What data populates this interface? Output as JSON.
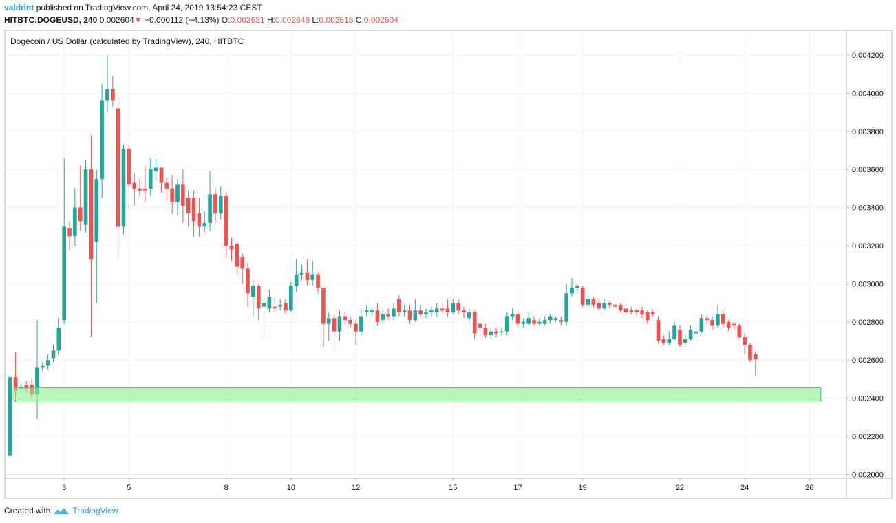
{
  "header": {
    "user": "valdrint",
    "published": "published on TradingView.com, April 24, 2019 13:54:23 CEST",
    "symbol": "HITBTC:DOGEUSD, 240",
    "price": "0.002604",
    "arrow": "▼",
    "change": "−0.000112 (−4.13%)",
    "o_label": "O:",
    "o": "0.002631",
    "h_label": "H:",
    "h": "0.002648",
    "l_label": "L:",
    "l": "0.002515",
    "c_label": "C:",
    "c": "0.002604"
  },
  "footer": {
    "created": "Created with",
    "brand": "TradingView"
  },
  "chart_data": {
    "type": "candlestick",
    "title": "Dogecoin / US Dollar (calculated by TradingView), 240, HITBTC",
    "up_color": "#26a69a",
    "down_color": "#ef5350",
    "grid": true,
    "xlim": [
      1.17,
      27.14
    ],
    "xticks": [
      3,
      5,
      8,
      10,
      12,
      15,
      17,
      19,
      22,
      24,
      26
    ],
    "ylim": [
      0.00198,
      0.00433
    ],
    "yticks": [
      {
        "value": 0.002,
        "label": "0.002000"
      },
      {
        "value": 0.0022,
        "label": "0.002200"
      },
      {
        "value": 0.0024,
        "label": "0.002400"
      },
      {
        "value": 0.0026,
        "label": "0.002600"
      },
      {
        "value": 0.0028,
        "label": "0.002800"
      },
      {
        "value": 0.003,
        "label": "0.003000"
      },
      {
        "value": 0.0032,
        "label": "0.003200"
      },
      {
        "value": 0.0034,
        "label": "0.003400"
      },
      {
        "value": 0.0036,
        "label": "0.003600"
      },
      {
        "value": 0.0038,
        "label": "0.003800"
      },
      {
        "value": 0.004,
        "label": "0.004000"
      },
      {
        "value": 0.0042,
        "label": "0.004200"
      }
    ],
    "highlight_band": {
      "x": [
        1.45,
        26.35
      ],
      "y": [
        0.002386,
        0.002455
      ],
      "color": "#90ee90"
    },
    "x": [
      1.333,
      1.5,
      1.667,
      1.833,
      2,
      2.167,
      2.333,
      2.5,
      2.667,
      2.833,
      3,
      3.167,
      3.333,
      3.5,
      3.667,
      3.833,
      4,
      4.167,
      4.333,
      4.5,
      4.667,
      4.833,
      5,
      5.167,
      5.333,
      5.5,
      5.667,
      5.833,
      6,
      6.167,
      6.333,
      6.5,
      6.667,
      6.833,
      7,
      7.167,
      7.333,
      7.5,
      7.667,
      7.833,
      8,
      8.167,
      8.333,
      8.5,
      8.667,
      8.833,
      9,
      9.167,
      9.333,
      9.5,
      9.667,
      9.833,
      10,
      10.167,
      10.333,
      10.5,
      10.667,
      10.833,
      11,
      11.167,
      11.333,
      11.5,
      11.667,
      11.833,
      12,
      12.167,
      12.333,
      12.5,
      12.667,
      12.833,
      13,
      13.167,
      13.333,
      13.5,
      13.667,
      13.833,
      14,
      14.167,
      14.333,
      14.5,
      14.667,
      14.833,
      15,
      15.167,
      15.333,
      15.5,
      15.667,
      15.833,
      16,
      16.167,
      16.333,
      16.5,
      16.667,
      16.833,
      17,
      17.167,
      17.333,
      17.5,
      17.667,
      17.833,
      18,
      18.167,
      18.333,
      18.5,
      18.667,
      18.833,
      19,
      19.167,
      19.333,
      19.5,
      19.667,
      19.833,
      20,
      20.167,
      20.333,
      20.5,
      20.667,
      20.833,
      21,
      21.167,
      21.333,
      21.5,
      21.667,
      21.833,
      22,
      22.167,
      22.333,
      22.5,
      22.667,
      22.833,
      23,
      23.167,
      23.333,
      23.5,
      23.667,
      23.833,
      24,
      24.167,
      24.333
    ],
    "open": [
      0.0021,
      0.00251,
      0.00245,
      0.00247,
      0.00247,
      0.00242,
      0.00256,
      0.00257,
      0.00261,
      0.00265,
      0.00281,
      0.00329,
      0.00325,
      0.0034,
      0.00331,
      0.0036,
      0.00322,
      0.00355,
      0.00396,
      0.00402,
      0.00392,
      0.0033,
      0.00371,
      0.00353,
      0.0035,
      0.0035,
      0.0035,
      0.00359,
      0.00361,
      0.00353,
      0.0035,
      0.00343,
      0.00352,
      0.00345,
      0.00345,
      0.00337,
      0.0033,
      0.00332,
      0.00347,
      0.00337,
      0.00346,
      0.0032,
      0.00321,
      0.00314,
      0.00308,
      0.00293,
      0.00299,
      0.00288,
      0.00287,
      0.00288,
      0.00288,
      0.0029,
      0.00286,
      0.00299,
      0.00305,
      0.00306,
      0.00302,
      0.00305,
      0.00298,
      0.00279,
      0.00282,
      0.00275,
      0.00283,
      0.00281,
      0.00279,
      0.00275,
      0.00285,
      0.00285,
      0.00286,
      0.00281,
      0.00284,
      0.00283,
      0.00292,
      0.00285,
      0.00286,
      0.00281,
      0.00286,
      0.00284,
      0.00285,
      0.00285,
      0.00287,
      0.00287,
      0.00285,
      0.0029,
      0.00286,
      0.00282,
      0.00285,
      0.00279,
      0.00277,
      0.00273,
      0.00275,
      0.00275,
      0.00275,
      0.00283,
      0.00284,
      0.00279,
      0.00279,
      0.00281,
      0.00279,
      0.00279,
      0.00281,
      0.00281,
      0.00281,
      0.0028,
      0.00295,
      0.00298,
      0.00298,
      0.00289,
      0.00292,
      0.0029,
      0.00287,
      0.0029,
      0.00289,
      0.00289,
      0.00287,
      0.00286,
      0.00286,
      0.00286,
      0.00285,
      0.00285,
      0.00281,
      0.00271,
      0.00269,
      0.00271,
      0.00276,
      0.00269,
      0.00271,
      0.00274,
      0.00275,
      0.00282,
      0.00281,
      0.00278,
      0.00284,
      0.0028,
      0.00279,
      0.00278,
      0.00272,
      0.00268,
      0.002631
    ],
    "high": [
      0.00251,
      0.00264,
      0.00248,
      0.00249,
      0.0025,
      0.00281,
      0.00259,
      0.00263,
      0.00268,
      0.00282,
      0.00366,
      0.00333,
      0.0035,
      0.00362,
      0.00365,
      0.00378,
      0.0036,
      0.00405,
      0.0042,
      0.00409,
      0.00398,
      0.00373,
      0.00373,
      0.00358,
      0.00355,
      0.00362,
      0.00366,
      0.00366,
      0.00361,
      0.00356,
      0.00357,
      0.00355,
      0.0036,
      0.00349,
      0.00349,
      0.00345,
      0.00338,
      0.00359,
      0.0035,
      0.00351,
      0.00348,
      0.00324,
      0.00322,
      0.00316,
      0.00311,
      0.00302,
      0.003,
      0.00296,
      0.00297,
      0.00293,
      0.00292,
      0.00292,
      0.00301,
      0.00313,
      0.0031,
      0.00313,
      0.00312,
      0.00306,
      0.00298,
      0.00285,
      0.00284,
      0.00286,
      0.00285,
      0.00283,
      0.00281,
      0.00286,
      0.00289,
      0.00288,
      0.0029,
      0.00286,
      0.00287,
      0.0029,
      0.00294,
      0.00289,
      0.00289,
      0.00292,
      0.00289,
      0.00287,
      0.00288,
      0.0029,
      0.0029,
      0.00292,
      0.00292,
      0.00292,
      0.00288,
      0.00287,
      0.00286,
      0.00281,
      0.00279,
      0.00277,
      0.00277,
      0.00277,
      0.00285,
      0.00287,
      0.00286,
      0.00282,
      0.00285,
      0.00283,
      0.00282,
      0.00283,
      0.00284,
      0.00283,
      0.00283,
      0.003,
      0.00303,
      0.003,
      0.00299,
      0.00294,
      0.00293,
      0.00292,
      0.00292,
      0.00291,
      0.0029,
      0.0029,
      0.00289,
      0.00288,
      0.00287,
      0.00288,
      0.00286,
      0.00286,
      0.00283,
      0.00273,
      0.00275,
      0.0028,
      0.00278,
      0.00273,
      0.00278,
      0.00277,
      0.00284,
      0.00284,
      0.00283,
      0.00289,
      0.00286,
      0.00281,
      0.0028,
      0.00279,
      0.00274,
      0.00269,
      0.002648
    ],
    "low": [
      0.00209,
      0.00238,
      0.00242,
      0.00243,
      0.0024,
      0.00229,
      0.00254,
      0.00255,
      0.00259,
      0.00263,
      0.00279,
      0.00318,
      0.0032,
      0.00328,
      0.00327,
      0.00272,
      0.0029,
      0.00345,
      0.0039,
      0.00393,
      0.00315,
      0.00326,
      0.0034,
      0.00341,
      0.00346,
      0.00343,
      0.00346,
      0.00354,
      0.00348,
      0.00344,
      0.00337,
      0.00336,
      0.00332,
      0.0033,
      0.00325,
      0.00325,
      0.00327,
      0.00328,
      0.00332,
      0.00334,
      0.00314,
      0.00312,
      0.00305,
      0.003,
      0.00288,
      0.00283,
      0.00281,
      0.00272,
      0.00285,
      0.00285,
      0.00286,
      0.00284,
      0.00285,
      0.00296,
      0.00302,
      0.00299,
      0.00299,
      0.00295,
      0.00267,
      0.0027,
      0.00265,
      0.0027,
      0.00278,
      0.00277,
      0.00268,
      0.00273,
      0.00283,
      0.00283,
      0.00278,
      0.00279,
      0.00281,
      0.00281,
      0.00283,
      0.00283,
      0.00279,
      0.0028,
      0.00283,
      0.00282,
      0.00283,
      0.00283,
      0.00285,
      0.00283,
      0.00284,
      0.00284,
      0.00282,
      0.0028,
      0.00271,
      0.00275,
      0.00272,
      0.00271,
      0.00272,
      0.00273,
      0.00273,
      0.00281,
      0.00277,
      0.00277,
      0.00278,
      0.00278,
      0.00278,
      0.00278,
      0.00279,
      0.0028,
      0.00278,
      0.00278,
      0.00293,
      0.00295,
      0.00288,
      0.00287,
      0.00287,
      0.00286,
      0.00286,
      0.00287,
      0.00287,
      0.00285,
      0.00284,
      0.00284,
      0.00283,
      0.00282,
      0.00279,
      0.00283,
      0.00269,
      0.00268,
      0.00268,
      0.0027,
      0.00267,
      0.00268,
      0.0027,
      0.00272,
      0.00274,
      0.00279,
      0.00276,
      0.00277,
      0.00277,
      0.00275,
      0.00276,
      0.00271,
      0.00263,
      0.00259,
      0.002515
    ],
    "close": [
      0.00251,
      0.00244,
      0.00246,
      0.00245,
      0.00242,
      0.00256,
      0.00257,
      0.0026,
      0.00265,
      0.00277,
      0.0033,
      0.00325,
      0.0034,
      0.00333,
      0.0036,
      0.00313,
      0.00355,
      0.00396,
      0.00402,
      0.00396,
      0.0033,
      0.00371,
      0.00352,
      0.0035,
      0.00349,
      0.00349,
      0.0036,
      0.00361,
      0.00353,
      0.0035,
      0.00343,
      0.00352,
      0.00341,
      0.00337,
      0.00333,
      0.0033,
      0.00332,
      0.00347,
      0.00337,
      0.00346,
      0.0032,
      0.00318,
      0.00309,
      0.00308,
      0.00295,
      0.00299,
      0.00287,
      0.0029,
      0.00293,
      0.00287,
      0.00289,
      0.00286,
      0.00299,
      0.00305,
      0.00306,
      0.00302,
      0.00305,
      0.00298,
      0.00279,
      0.00282,
      0.00275,
      0.00283,
      0.00281,
      0.00279,
      0.00275,
      0.00283,
      0.00286,
      0.00286,
      0.0028,
      0.00284,
      0.00283,
      0.00287,
      0.00285,
      0.00286,
      0.00281,
      0.00286,
      0.00284,
      0.00285,
      0.00286,
      0.00287,
      0.00286,
      0.00285,
      0.0029,
      0.00286,
      0.00285,
      0.00285,
      0.00274,
      0.00277,
      0.00273,
      0.00275,
      0.00274,
      0.00275,
      0.00283,
      0.00284,
      0.00279,
      0.0028,
      0.00282,
      0.00279,
      0.0028,
      0.00281,
      0.00283,
      0.00282,
      0.0028,
      0.00295,
      0.00298,
      0.00299,
      0.00289,
      0.00292,
      0.00289,
      0.00287,
      0.0029,
      0.00289,
      0.00288,
      0.00286,
      0.00285,
      0.00285,
      0.00285,
      0.00284,
      0.00281,
      0.00284,
      0.0027,
      0.00269,
      0.00271,
      0.00278,
      0.00268,
      0.00271,
      0.00276,
      0.00275,
      0.00282,
      0.00281,
      0.00278,
      0.00284,
      0.00279,
      0.00277,
      0.00278,
      0.00272,
      0.00268,
      0.0026,
      0.002604
    ]
  }
}
